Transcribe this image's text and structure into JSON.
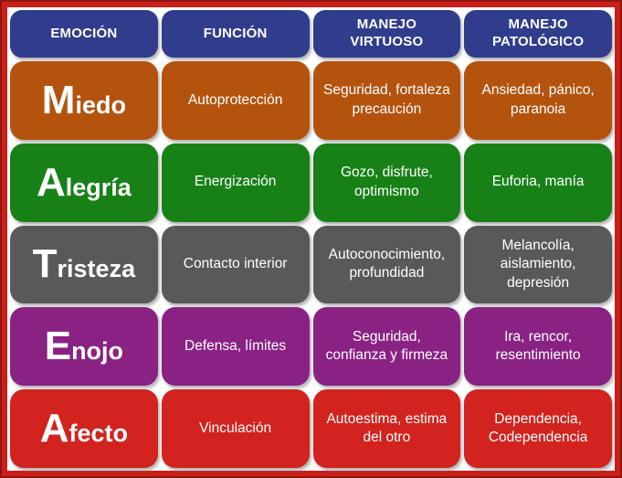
{
  "colors": {
    "frame_border": "#8E1710",
    "frame_background": "#CB1F1A",
    "panel_background": "#FFFFFF",
    "header_background": "#303C8C",
    "text": "#FFFFFF"
  },
  "table": {
    "headers": [
      {
        "label": "EMOCIÓN"
      },
      {
        "label": "FUNCIÓN"
      },
      {
        "label": "MANEJO VIRTUOSO"
      },
      {
        "label": "MANEJO PATOLÓGICO"
      }
    ],
    "rows": [
      {
        "emotion": {
          "initial": "M",
          "rest": "iedo"
        },
        "funcion": "Autoprotección",
        "manejo_virtuoso": "Seguridad, fortaleza precaución",
        "manejo_patologico": "Ansiedad, pánico, paranoia",
        "color": "#B4530E"
      },
      {
        "emotion": {
          "initial": "A",
          "rest": "legría"
        },
        "funcion": "Energización",
        "manejo_virtuoso": "Gozo, disfrute, optimismo",
        "manejo_patologico": "Euforia, manía",
        "color": "#178117"
      },
      {
        "emotion": {
          "initial": "T",
          "rest": "risteza"
        },
        "funcion": "Contacto interior",
        "manejo_virtuoso": "Autoconocimiento, profundidad",
        "manejo_patologico": "Melancolía, aislamiento, depresión",
        "color": "#595959"
      },
      {
        "emotion": {
          "initial": "E",
          "rest": "nojo"
        },
        "funcion": "Defensa, límites",
        "manejo_virtuoso": "Seguridad, confianza y firmeza",
        "manejo_patologico": "Ira, rencor, resentimiento",
        "color": "#8A2284"
      },
      {
        "emotion": {
          "initial": "A",
          "rest": "fecto"
        },
        "funcion": "Vinculación",
        "manejo_virtuoso": "Autoestima, estima del otro",
        "manejo_patologico": "Dependencia, Codependencia",
        "color": "#D2231E"
      }
    ]
  }
}
